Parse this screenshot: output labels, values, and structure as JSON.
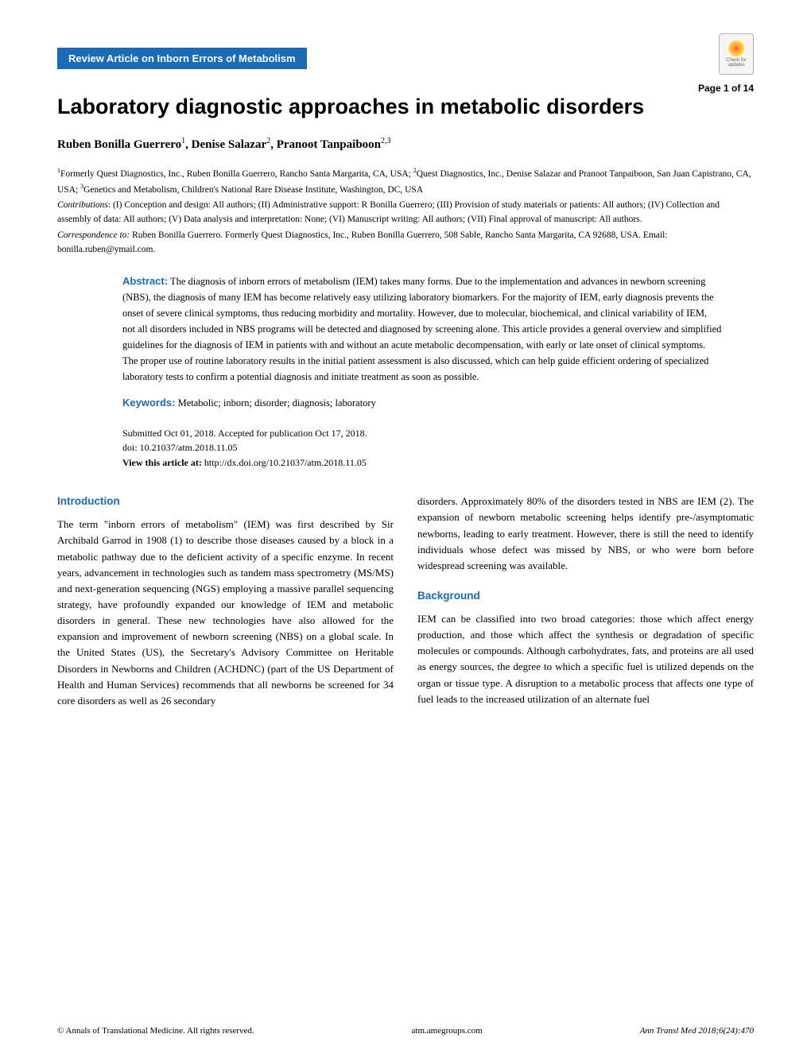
{
  "badge": {
    "line1": "Check for",
    "line2": "updates"
  },
  "category_bar": "Review Article on Inborn Errors of Metabolism",
  "page_number": "Page 1 of 14",
  "title": "Laboratory diagnostic approaches in metabolic disorders",
  "authors_html": "Ruben Bonilla Guerrero<sup>1</sup>, Denise Salazar<sup>2</sup>, Pranoot Tanpaiboon<sup>2,3</sup>",
  "affiliations_html": "<sup>1</sup>Formerly Quest Diagnostics, Inc., Ruben Bonilla Guerrero, Rancho Santa Margarita, CA, USA; <sup>2</sup>Quest Diagnostics, Inc., Denise Salazar and Pranoot Tanpaiboon, San Juan Capistrano, CA, USA; <sup>3</sup>Genetics and Metabolism, Children's National Rare Disease Institute, Washington, DC, USA",
  "contributions_label": "Contributions",
  "contributions_text": ": (I) Conception and design: All authors; (II) Administrative support: R Bonilla Guerrero; (III) Provision of study materials or patients: All authors; (IV) Collection and assembly of data: All authors; (V) Data analysis and interpretation: None; (VI) Manuscript writing: All authors; (VII) Final approval of manuscript: All authors.",
  "correspondence_label": "Correspondence to:",
  "correspondence_text": " Ruben Bonilla Guerrero. Formerly Quest Diagnostics, Inc., Ruben Bonilla Guerrero, 508 Sable, Rancho Santa Margarita, CA 92688, USA. Email: bonilla.ruben@ymail.com.",
  "abstract_label": "Abstract:",
  "abstract_text": " The diagnosis of inborn errors of metabolism (IEM) takes many forms. Due to the implementation and advances in newborn screening (NBS), the diagnosis of many IEM has become relatively easy utilizing laboratory biomarkers. For the majority of IEM, early diagnosis prevents the onset of severe clinical symptoms, thus reducing morbidity and mortality. However, due to molecular, biochemical, and clinical variability of IEM, not all disorders included in NBS programs will be detected and diagnosed by screening alone. This article provides a general overview and simplified guidelines for the diagnosis of IEM in patients with and without an acute metabolic decompensation, with early or late onset of clinical symptoms. The proper use of routine laboratory results in the initial patient assessment is also discussed, which can help guide efficient ordering of specialized laboratory tests to confirm a potential diagnosis and initiate treatment as soon as possible.",
  "keywords_label": "Keywords:",
  "keywords_text": " Metabolic; inborn; disorder; diagnosis; laboratory",
  "submitted": "Submitted Oct 01, 2018. Accepted for publication Oct 17, 2018.",
  "doi": "doi: 10.21037/atm.2018.11.05",
  "view_label": "View this article at:",
  "view_url": " http://dx.doi.org/10.21037/atm.2018.11.05",
  "sections": {
    "introduction": {
      "heading": "Introduction",
      "text": "The term \"inborn errors of metabolism\" (IEM) was first described by Sir Archibald Garrod in 1908 (1) to describe those diseases caused by a block in a metabolic pathway due to the deficient activity of a specific enzyme. In recent years, advancement in technologies such as tandem mass spectrometry (MS/MS) and next-generation sequencing (NGS) employing a massive parallel sequencing strategy, have profoundly expanded our knowledge of IEM and metabolic disorders in general. These new technologies have also allowed for the expansion and improvement of newborn screening (NBS) on a global scale. In the United States (US), the Secretary's Advisory Committee on Heritable Disorders in Newborns and Children (ACHDNC) (part of the US Department of Health and Human Services) recommends that all newborns be screened for 34 core disorders as well as 26 secondary"
    },
    "col2_top": "disorders. Approximately 80% of the disorders tested in NBS are IEM (2). The expansion of newborn metabolic screening helps identify pre-/asymptomatic newborns, leading to early treatment. However, there is still the need to identify individuals whose defect was missed by NBS, or who were born before widespread screening was available.",
    "background": {
      "heading": "Background",
      "text": "IEM can be classified into two broad categories: those which affect energy production, and those which affect the synthesis or degradation of specific molecules or compounds. Although carbohydrates, fats, and proteins are all used as energy sources, the degree to which a specific fuel is utilized depends on the organ or tissue type. A disruption to a metabolic process that affects one type of fuel leads to the increased utilization of an alternate fuel"
    }
  },
  "footer": {
    "left": "© Annals of Translational Medicine. All rights reserved.",
    "center": "atm.amegroups.com",
    "right": "Ann Transl Med 2018;6(24):470"
  },
  "colors": {
    "brand_blue": "#1a6bb8",
    "text": "#000000",
    "background": "#ffffff"
  },
  "typography": {
    "title_fontsize": 27,
    "authors_fontsize": 15,
    "small_fontsize": 11.5,
    "body_fontsize": 13,
    "heading_fontsize": 13.5
  }
}
